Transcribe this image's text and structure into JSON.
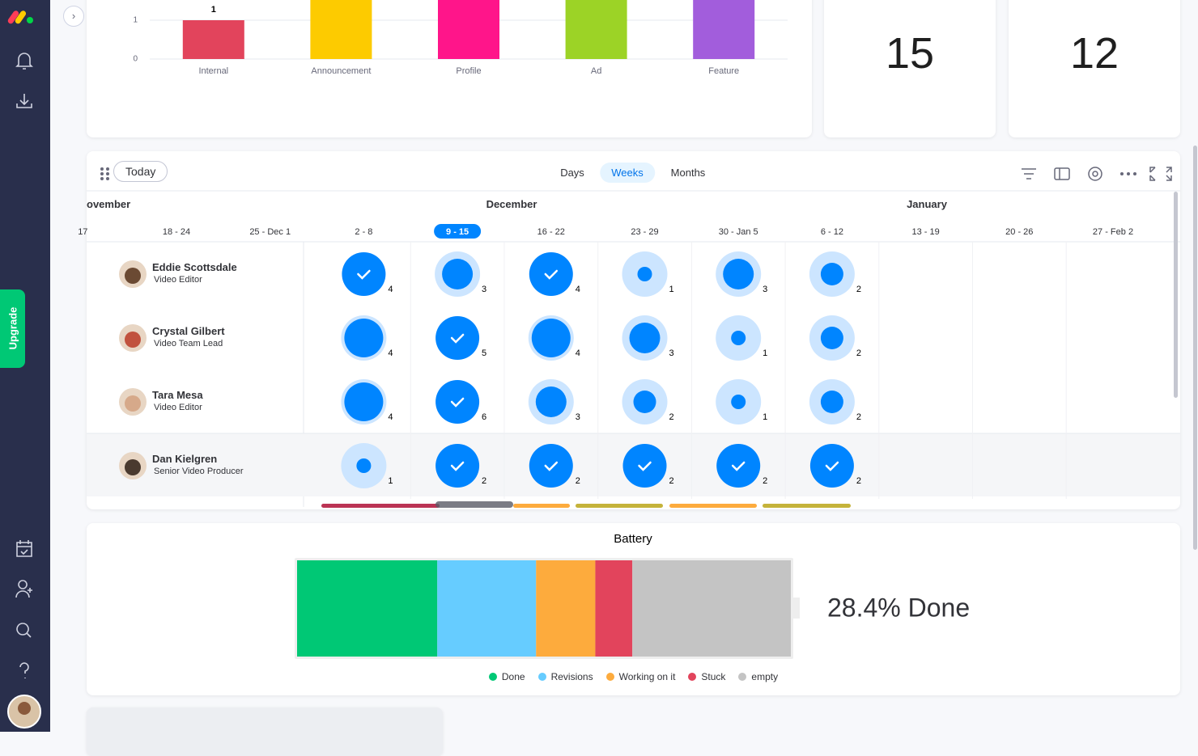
{
  "sidebar": {
    "upgrade": "Upgrade"
  },
  "chart_data": [
    {
      "type": "bar",
      "categories": [
        "Internal",
        "Announcement",
        "Profile",
        "Ad",
        "Feature"
      ],
      "values": [
        1,
        2,
        2,
        2,
        2
      ],
      "colors": [
        "#e2445c",
        "#fdcb00",
        "#ff158a",
        "#9cd326",
        "#a25ddc"
      ],
      "ylim": [
        0,
        2
      ],
      "yticks": [
        0,
        1
      ]
    },
    {
      "type": "battery",
      "title": "Battery",
      "summary": "28.4% Done",
      "series": [
        {
          "name": "Done",
          "color": "#00c875",
          "values": [
            28.4
          ]
        },
        {
          "name": "Revisions",
          "color": "#66ccff",
          "values": [
            20
          ]
        },
        {
          "name": "Working on it",
          "color": "#fdab3d",
          "values": [
            12
          ]
        },
        {
          "name": "Stuck",
          "color": "#e2445c",
          "values": [
            7.5
          ]
        },
        {
          "name": "empty",
          "color": "#c4c4c4",
          "values": [
            32.1
          ]
        }
      ]
    }
  ],
  "numbers": [
    15,
    12
  ],
  "workload": {
    "today": "Today",
    "views": [
      "Days",
      "Weeks",
      "Months"
    ],
    "active_view": 1,
    "months": [
      "ovember",
      "December",
      "January"
    ],
    "weeks": [
      "17",
      "18 - 24",
      "25 - Dec 1",
      "2 - 8",
      "9 - 15",
      "16 - 22",
      "23 - 29",
      "30 - Jan 5",
      "6 - 12",
      "13 - 19",
      "20 - 26",
      "27 - Feb 2"
    ],
    "current_week": 4,
    "first_load_week": 3,
    "people": [
      {
        "name": "Eddie Scottsdale",
        "role": "Video Editor",
        "loads": [
          4,
          3,
          4,
          1,
          3,
          2
        ],
        "done": [
          true,
          false,
          true,
          false,
          false,
          false
        ]
      },
      {
        "name": "Crystal Gilbert",
        "role": "Video Team Lead",
        "loads": [
          4,
          5,
          4,
          3,
          1,
          2
        ],
        "done": [
          false,
          true,
          false,
          false,
          false,
          false
        ]
      },
      {
        "name": "Tara Mesa",
        "role": "Video Editor",
        "loads": [
          4,
          6,
          3,
          2,
          1,
          2
        ],
        "done": [
          false,
          true,
          false,
          false,
          false,
          false
        ]
      },
      {
        "name": "Dan Kielgren",
        "role": "Senior Video Producer",
        "loads": [
          1,
          2,
          2,
          2,
          2,
          2
        ],
        "done": [
          false,
          true,
          true,
          true,
          true,
          true
        ]
      }
    ]
  }
}
